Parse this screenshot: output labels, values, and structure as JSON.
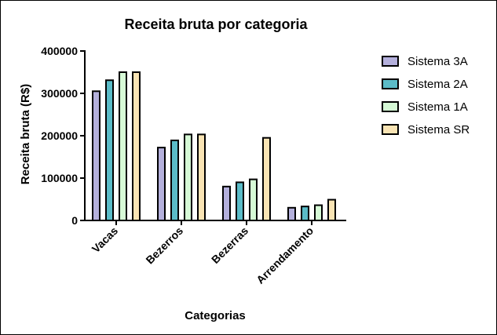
{
  "chart_data": {
    "type": "bar",
    "title": "Receita bruta por categoria",
    "xlabel": "Categorias",
    "ylabel": "Receita bruta (R$)",
    "categories": [
      "Vacas",
      "Bezerros",
      "Bezerras",
      "Arrendamento"
    ],
    "ylim": [
      0,
      400000
    ],
    "yticks": [
      "0",
      "100000",
      "200000",
      "300000",
      "400000"
    ],
    "grid": false,
    "legend_position": "right",
    "series": [
      {
        "name": "Sistema 3A",
        "color": "#B4B0DC",
        "values": [
          305000,
          172000,
          80000,
          30000
        ]
      },
      {
        "name": "Sistema 2A",
        "color": "#5BBCC8",
        "values": [
          331000,
          189000,
          90000,
          33000
        ]
      },
      {
        "name": "Sistema 1A",
        "color": "#D6FAD6",
        "values": [
          350000,
          203000,
          97000,
          36000
        ]
      },
      {
        "name": "Sistema SR",
        "color": "#F9E4B4",
        "values": [
          350000,
          203000,
          195000,
          49000
        ]
      }
    ]
  }
}
